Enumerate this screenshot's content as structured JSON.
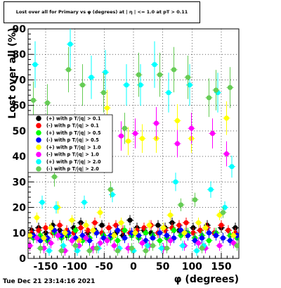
{
  "title": "Lost over all for Primary vs φ (degrees) at | η | <= 1.0 at pT > 0.11",
  "footer_timestamp": "Tue Dec 21 23:14:16 2021",
  "chart_data": {
    "type": "scatter",
    "title": "Lost over all for Primary vs φ (degrees) at | η | <= 1.0 at pT > 0.11",
    "xlabel": "φ (degrees)",
    "ylabel": "Lost over all (%)",
    "xlim": [
      -180,
      180
    ],
    "ylim": [
      0,
      90
    ],
    "x_ticks": [
      -150,
      -100,
      -50,
      0,
      50,
      100,
      150
    ],
    "y_ticks": [
      0,
      10,
      20,
      30,
      40,
      50,
      60,
      70,
      80,
      90
    ],
    "grid": true,
    "legend_position": "middle-left",
    "series": [
      {
        "name": "(+) with p T/|q| > 0.1",
        "color": "#000000",
        "x": [
          -174,
          -162,
          -150,
          -138,
          -126,
          -114,
          -102,
          -90,
          -78,
          -66,
          -54,
          -42,
          -30,
          -18,
          -6,
          6,
          18,
          30,
          42,
          54,
          66,
          78,
          90,
          102,
          114,
          126,
          138,
          150,
          162,
          174
        ],
        "y": [
          11,
          12,
          10,
          13,
          11,
          9,
          12,
          14,
          10,
          11,
          13,
          12,
          10,
          9,
          15,
          12,
          11,
          10,
          13,
          12,
          14,
          11,
          10,
          12,
          11,
          13,
          10,
          12,
          11,
          12
        ]
      },
      {
        "name": "(-) with p T/|q| > 0.1",
        "color": "#ff0000",
        "x": [
          -174,
          -162,
          -150,
          -138,
          -126,
          -114,
          -102,
          -90,
          -78,
          -66,
          -54,
          -42,
          -30,
          -18,
          -6,
          6,
          18,
          30,
          42,
          54,
          66,
          78,
          90,
          102,
          114,
          126,
          138,
          150,
          162,
          174
        ],
        "y": [
          10,
          11,
          12,
          10,
          13,
          11,
          10,
          12,
          11,
          14,
          10,
          12,
          13,
          11,
          10,
          11,
          12,
          13,
          10,
          11,
          12,
          13,
          14,
          10,
          11,
          12,
          10,
          13,
          11,
          10
        ]
      },
      {
        "name": "(+) with p T/|q| > 0.5",
        "color": "#00ff00",
        "x": [
          -171,
          -159,
          -147,
          -135,
          -123,
          -111,
          -99,
          -87,
          -75,
          -63,
          -51,
          -39,
          -27,
          -15,
          -3,
          9,
          21,
          33,
          45,
          57,
          69,
          81,
          93,
          105,
          117,
          129,
          141,
          153,
          165,
          177
        ],
        "y": [
          8,
          9,
          7,
          10,
          8,
          9,
          11,
          7,
          8,
          10,
          9,
          8,
          7,
          11,
          9,
          8,
          10,
          9,
          7,
          8,
          11,
          9,
          10,
          8,
          9,
          7,
          10,
          8,
          9,
          8
        ]
      },
      {
        "name": "(-) with p T/|q| > 0.5",
        "color": "#0000ff",
        "x": [
          -171,
          -159,
          -147,
          -135,
          -123,
          -111,
          -99,
          -87,
          -75,
          -63,
          -51,
          -39,
          -27,
          -15,
          -3,
          9,
          21,
          33,
          45,
          57,
          69,
          81,
          93,
          105,
          117,
          129,
          141,
          153,
          165,
          177
        ],
        "y": [
          9,
          7,
          8,
          11,
          9,
          10,
          8,
          9,
          7,
          10,
          8,
          9,
          11,
          8,
          10,
          9,
          7,
          8,
          10,
          9,
          8,
          11,
          9,
          7,
          8,
          10,
          9,
          8,
          7,
          9
        ]
      },
      {
        "name": "(+) with p T/|q| > 1.0",
        "color": "#ffff00",
        "x": [
          -177,
          -165,
          -153,
          -141,
          -129,
          -117,
          -105,
          -93,
          -81,
          -69,
          -57,
          -45,
          -33,
          -21,
          -9,
          3,
          15,
          27,
          39,
          51,
          63,
          75,
          87,
          99,
          111,
          123,
          135,
          147,
          159,
          171
        ],
        "y": [
          9,
          16,
          8,
          12,
          20,
          10,
          15,
          7,
          13,
          11,
          18,
          59,
          9,
          14,
          46,
          10,
          47,
          13,
          47,
          12,
          17,
          54,
          10,
          47,
          14,
          12,
          49,
          17,
          55,
          9
        ]
      },
      {
        "name": "(-) with p T/|q| > 1.0",
        "color": "#ff00ff",
        "x": [
          -177,
          -165,
          -153,
          -141,
          -129,
          -117,
          -105,
          -93,
          -81,
          -69,
          -57,
          -45,
          -33,
          -21,
          -9,
          3,
          15,
          27,
          39,
          51,
          63,
          75,
          87,
          99,
          111,
          123,
          135,
          147,
          159,
          171
        ],
        "y": [
          5,
          8,
          4,
          6,
          9,
          3,
          7,
          5,
          8,
          4,
          6,
          7,
          5,
          48,
          4,
          49,
          6,
          5,
          53,
          4,
          7,
          45,
          5,
          51,
          6,
          4,
          49,
          5,
          41,
          6
        ]
      },
      {
        "name": "(+) with p T/|q| > 2.0",
        "color": "#00ffff",
        "x": [
          -168,
          -156,
          -144,
          -132,
          -120,
          -108,
          -96,
          -84,
          -72,
          -60,
          -48,
          -36,
          -24,
          -12,
          0,
          12,
          24,
          36,
          48,
          60,
          72,
          84,
          96,
          108,
          120,
          132,
          144,
          156,
          168
        ],
        "y": [
          76,
          22,
          3,
          20,
          5,
          84,
          3,
          22,
          71,
          4,
          73,
          25,
          4,
          68,
          3,
          68,
          5,
          76,
          4,
          65,
          30,
          5,
          68,
          3,
          5,
          27,
          65,
          20,
          36
        ]
      },
      {
        "name": "(-) with p T/|q| > 2.0",
        "color": "#66cc55",
        "x": [
          -171,
          -159,
          -147,
          -135,
          -123,
          -111,
          -99,
          -87,
          -75,
          -63,
          -51,
          -39,
          -27,
          -15,
          -3,
          9,
          21,
          33,
          45,
          57,
          69,
          81,
          93,
          105,
          117,
          129,
          141,
          153,
          165,
          177
        ],
        "y": [
          62,
          4,
          61,
          32,
          3,
          74,
          5,
          68,
          3,
          4,
          65,
          27,
          3,
          51,
          4,
          72,
          3,
          5,
          72,
          4,
          74,
          21,
          71,
          23,
          4,
          63,
          66,
          18,
          67,
          5
        ]
      }
    ]
  }
}
